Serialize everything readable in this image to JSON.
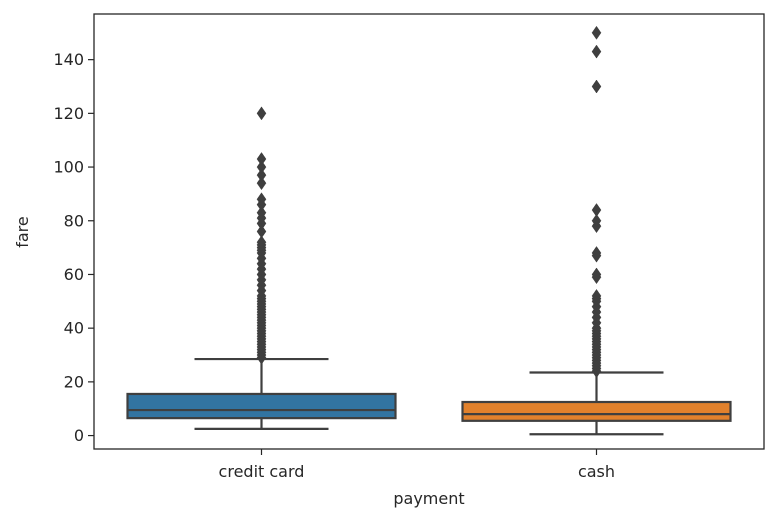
{
  "chart_data": {
    "type": "box",
    "title": "",
    "xlabel": "payment",
    "ylabel": "fare",
    "ylim": [
      -5,
      157
    ],
    "yticks": [
      0,
      20,
      40,
      60,
      80,
      100,
      120,
      140
    ],
    "categories": [
      "credit card",
      "cash"
    ],
    "colors": [
      "#3274a1",
      "#e1812c"
    ],
    "line_color": "#3f3f3f",
    "boxes": [
      {
        "category": "credit card",
        "whisker_low": 2.5,
        "q1": 6.5,
        "median": 9.5,
        "q3": 15.5,
        "whisker_high": 28.5,
        "outliers": [
          29,
          30,
          31,
          32,
          33,
          34,
          35,
          36,
          37,
          38,
          39,
          40,
          41,
          42,
          43,
          44,
          45,
          46,
          47,
          48,
          49,
          50,
          51,
          52,
          54,
          56,
          58,
          60,
          62,
          64,
          66,
          68,
          69,
          70,
          71,
          72,
          76,
          79,
          81,
          83,
          86,
          88,
          94,
          97,
          100,
          103,
          120
        ]
      },
      {
        "category": "cash",
        "whisker_low": 0.5,
        "q1": 5.5,
        "median": 8.0,
        "q3": 12.5,
        "whisker_high": 23.5,
        "outliers": [
          24,
          25,
          26,
          27,
          28,
          29,
          30,
          31,
          32,
          33,
          34,
          35,
          36,
          37,
          38,
          39,
          40,
          42,
          44,
          46,
          48,
          50,
          51,
          52,
          59,
          60,
          67,
          68,
          78,
          80,
          84,
          130,
          143,
          150
        ]
      }
    ]
  }
}
